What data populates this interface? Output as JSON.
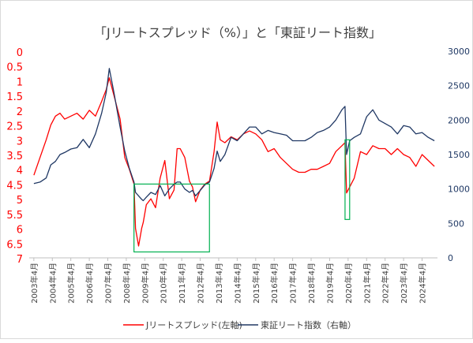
{
  "chart_data": {
    "type": "line",
    "title": "「Jリートスプレッド（%）」と「東証リート指数」",
    "legend_position": "bottom",
    "grid": false,
    "x_range": [
      "2003-01",
      "2025-02"
    ],
    "left_axis": {
      "range": [
        0,
        7
      ],
      "inverted": true,
      "color": "#ff0000",
      "ticks": [
        "0",
        "0.5",
        "1",
        "1.5",
        "2",
        "2.5",
        "3",
        "3.5",
        "4",
        "4.5",
        "5",
        "5.5",
        "6",
        "6.5",
        "7"
      ]
    },
    "right_axis": {
      "range": [
        0,
        3000
      ],
      "color": "#1f3864",
      "ticks": [
        "0",
        "500",
        "1000",
        "1500",
        "2000",
        "2500",
        "3000"
      ]
    },
    "x_tick_labels": [
      "2003年4月",
      "2004年4月",
      "2005年4月",
      "2006年4月",
      "2007年4月",
      "2008年4月",
      "2009年4月",
      "2010年4月",
      "2011年4月",
      "2012年4月",
      "2013年4月",
      "2014年4月",
      "2015年4月",
      "2016年4月",
      "2017年4月",
      "2018年4月",
      "2019年4月",
      "2020年4月",
      "2021年4月",
      "2022年4月",
      "2023年4月",
      "2024年4月"
    ],
    "series": [
      {
        "name": "Jリートスプレッド(左軸)",
        "axis": "left",
        "color": "#ff0000",
        "x": [
          "2003-04",
          "2003-08",
          "2003-12",
          "2004-03",
          "2004-06",
          "2004-09",
          "2004-12",
          "2005-04",
          "2005-08",
          "2005-12",
          "2006-04",
          "2006-08",
          "2006-12",
          "2007-03",
          "2007-05",
          "2007-08",
          "2007-12",
          "2008-03",
          "2008-06",
          "2008-09",
          "2008-10",
          "2008-12",
          "2009-02",
          "2009-03",
          "2009-05",
          "2009-08",
          "2009-11",
          "2010-02",
          "2010-05",
          "2010-08",
          "2010-11",
          "2011-01",
          "2011-03",
          "2011-06",
          "2011-09",
          "2011-11",
          "2012-01",
          "2012-04",
          "2012-07",
          "2012-10",
          "2013-01",
          "2013-03",
          "2013-05",
          "2013-08",
          "2013-12",
          "2014-04",
          "2014-08",
          "2014-12",
          "2015-04",
          "2015-08",
          "2015-12",
          "2016-04",
          "2016-08",
          "2016-12",
          "2017-04",
          "2017-08",
          "2017-12",
          "2018-04",
          "2018-08",
          "2018-12",
          "2019-04",
          "2019-08",
          "2019-12",
          "2020-02",
          "2020-03",
          "2020-05",
          "2020-08",
          "2020-12",
          "2021-04",
          "2021-08",
          "2021-12",
          "2022-04",
          "2022-08",
          "2022-12",
          "2023-04",
          "2023-08",
          "2023-12",
          "2024-04",
          "2024-08",
          "2024-12"
        ],
        "y": [
          4.2,
          3.6,
          3.0,
          2.5,
          2.2,
          2.1,
          2.3,
          2.2,
          2.1,
          2.3,
          2.0,
          2.2,
          1.7,
          1.3,
          0.9,
          1.5,
          2.3,
          3.6,
          4.0,
          4.5,
          6.0,
          6.6,
          6.0,
          5.8,
          5.2,
          5.0,
          5.3,
          4.3,
          3.7,
          5.0,
          4.7,
          3.3,
          3.3,
          3.6,
          4.4,
          4.6,
          5.1,
          4.7,
          4.5,
          4.4,
          3.4,
          2.4,
          3.0,
          3.1,
          2.9,
          3.0,
          2.8,
          2.7,
          2.8,
          3.0,
          3.4,
          3.3,
          3.6,
          3.8,
          4.0,
          4.1,
          4.1,
          4.0,
          4.0,
          3.9,
          3.8,
          3.4,
          3.2,
          3.1,
          4.8,
          4.6,
          4.3,
          3.4,
          3.5,
          3.2,
          3.3,
          3.3,
          3.5,
          3.3,
          3.5,
          3.6,
          3.9,
          3.5,
          3.7,
          3.9
        ]
      },
      {
        "name": "東証リート指数（右軸）",
        "axis": "right",
        "color": "#203864",
        "x": [
          "2003-04",
          "2003-08",
          "2003-12",
          "2004-03",
          "2004-06",
          "2004-09",
          "2004-12",
          "2005-04",
          "2005-08",
          "2005-12",
          "2006-04",
          "2006-08",
          "2006-12",
          "2007-03",
          "2007-05",
          "2007-08",
          "2007-12",
          "2008-03",
          "2008-06",
          "2008-09",
          "2008-10",
          "2008-12",
          "2009-02",
          "2009-03",
          "2009-05",
          "2009-08",
          "2009-11",
          "2010-02",
          "2010-05",
          "2010-08",
          "2010-11",
          "2011-01",
          "2011-03",
          "2011-06",
          "2011-09",
          "2011-11",
          "2012-01",
          "2012-04",
          "2012-07",
          "2012-10",
          "2013-01",
          "2013-03",
          "2013-05",
          "2013-08",
          "2013-12",
          "2014-04",
          "2014-08",
          "2014-12",
          "2015-04",
          "2015-08",
          "2015-12",
          "2016-04",
          "2016-08",
          "2016-12",
          "2017-04",
          "2017-08",
          "2017-12",
          "2018-04",
          "2018-08",
          "2018-12",
          "2019-04",
          "2019-08",
          "2019-12",
          "2020-02",
          "2020-03",
          "2020-05",
          "2020-08",
          "2020-12",
          "2021-04",
          "2021-08",
          "2021-12",
          "2022-04",
          "2022-08",
          "2022-12",
          "2023-04",
          "2023-08",
          "2023-12",
          "2024-04",
          "2024-08",
          "2024-12"
        ],
        "y": [
          1080,
          1100,
          1160,
          1350,
          1400,
          1500,
          1530,
          1580,
          1600,
          1720,
          1600,
          1800,
          2100,
          2400,
          2750,
          2400,
          1900,
          1550,
          1300,
          1100,
          950,
          900,
          850,
          830,
          880,
          950,
          920,
          1050,
          900,
          1000,
          1070,
          1100,
          1100,
          1000,
          950,
          980,
          900,
          980,
          1060,
          1100,
          1300,
          1550,
          1400,
          1500,
          1750,
          1700,
          1800,
          1900,
          1900,
          1800,
          1850,
          1820,
          1800,
          1780,
          1700,
          1700,
          1700,
          1750,
          1820,
          1850,
          1900,
          2000,
          2150,
          2200,
          1500,
          1700,
          1750,
          1800,
          2050,
          2150,
          2000,
          1950,
          1900,
          1800,
          1920,
          1900,
          1800,
          1820,
          1750,
          1700
        ]
      }
    ],
    "annotations": [
      {
        "shape": "rectangle",
        "color": "#00b050",
        "from_x": "2008-09",
        "to_x": "2012-10",
        "from_y": 4.5,
        "to_y": 6.8
      },
      {
        "shape": "rectangle",
        "color": "#00b050",
        "from_x": "2020-02",
        "to_x": "2020-05",
        "from_y": 3.0,
        "to_y": 5.7
      }
    ]
  }
}
